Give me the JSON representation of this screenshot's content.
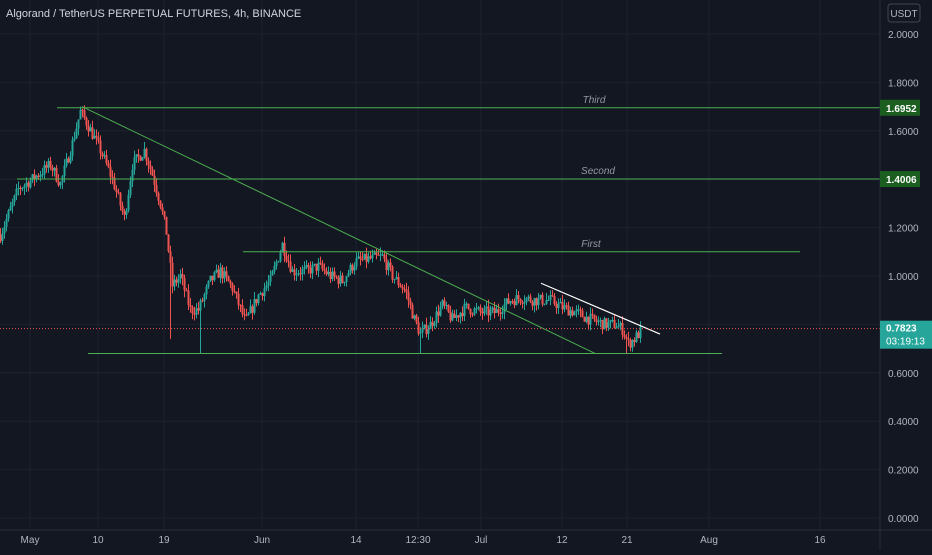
{
  "header": {
    "title": "Algorand / TetherUS PERPETUAL FUTURES, 4h, BINANCE",
    "currency": "USDT"
  },
  "chart_data": {
    "type": "candlestick",
    "symbol": "ALGOUSDTPERP",
    "interval": "4h",
    "yticks": [
      "2.0000",
      "1.8000",
      "1.6000",
      "1.4000",
      "1.2000",
      "1.0000",
      "0.8000",
      "0.6000",
      "0.4000",
      "0.2000",
      "0.0000"
    ],
    "xticks": [
      "May",
      "10",
      "19",
      "Jun",
      "14",
      "12:30",
      "Jul",
      "12",
      "21",
      "Aug",
      "16"
    ],
    "ylim": [
      0,
      2.0
    ],
    "last_price": "0.7823",
    "countdown": "03:19:13",
    "levels": [
      {
        "label": "Third",
        "price": "1.6952",
        "value": 1.6952
      },
      {
        "label": "Second",
        "price": "1.4006",
        "value": 1.4006
      },
      {
        "label": "First",
        "price": "",
        "value": 1.1
      }
    ],
    "support": 0.68,
    "colors": {
      "bg": "#131722",
      "up": "#26a69a",
      "down": "#ef5350",
      "level": "#4caf50",
      "trend": "#ffffff",
      "grid": "#1e222d"
    },
    "anchors": [
      [
        0,
        1.17
      ],
      [
        18,
        1.36
      ],
      [
        32,
        1.4
      ],
      [
        50,
        1.46
      ],
      [
        60,
        1.38
      ],
      [
        72,
        1.55
      ],
      [
        80,
        1.68
      ],
      [
        88,
        1.62
      ],
      [
        100,
        1.52
      ],
      [
        112,
        1.4
      ],
      [
        124,
        1.24
      ],
      [
        132,
        1.46
      ],
      [
        144,
        1.52
      ],
      [
        152,
        1.42
      ],
      [
        160,
        1.3
      ],
      [
        166,
        1.18
      ],
      [
        172,
        0.96
      ],
      [
        180,
        1.0
      ],
      [
        190,
        0.86
      ],
      [
        198,
        0.86
      ],
      [
        210,
        0.98
      ],
      [
        220,
        1.02
      ],
      [
        232,
        0.95
      ],
      [
        245,
        0.81
      ],
      [
        258,
        0.92
      ],
      [
        270,
        0.98
      ],
      [
        282,
        1.13
      ],
      [
        292,
        1.02
      ],
      [
        305,
        1.02
      ],
      [
        318,
        1.04
      ],
      [
        330,
        1.0
      ],
      [
        342,
        0.98
      ],
      [
        355,
        1.06
      ],
      [
        368,
        1.07
      ],
      [
        382,
        1.08
      ],
      [
        392,
        1.0
      ],
      [
        405,
        0.94
      ],
      [
        414,
        0.82
      ],
      [
        420,
        0.76
      ],
      [
        430,
        0.8
      ],
      [
        442,
        0.88
      ],
      [
        452,
        0.82
      ],
      [
        465,
        0.87
      ],
      [
        480,
        0.85
      ],
      [
        495,
        0.85
      ],
      [
        510,
        0.9
      ],
      [
        520,
        0.91
      ],
      [
        535,
        0.9
      ],
      [
        550,
        0.9
      ],
      [
        562,
        0.87
      ],
      [
        575,
        0.85
      ],
      [
        590,
        0.82
      ],
      [
        605,
        0.8
      ],
      [
        615,
        0.8
      ],
      [
        622,
        0.78
      ],
      [
        628,
        0.72
      ],
      [
        634,
        0.74
      ],
      [
        640,
        0.77
      ]
    ]
  }
}
